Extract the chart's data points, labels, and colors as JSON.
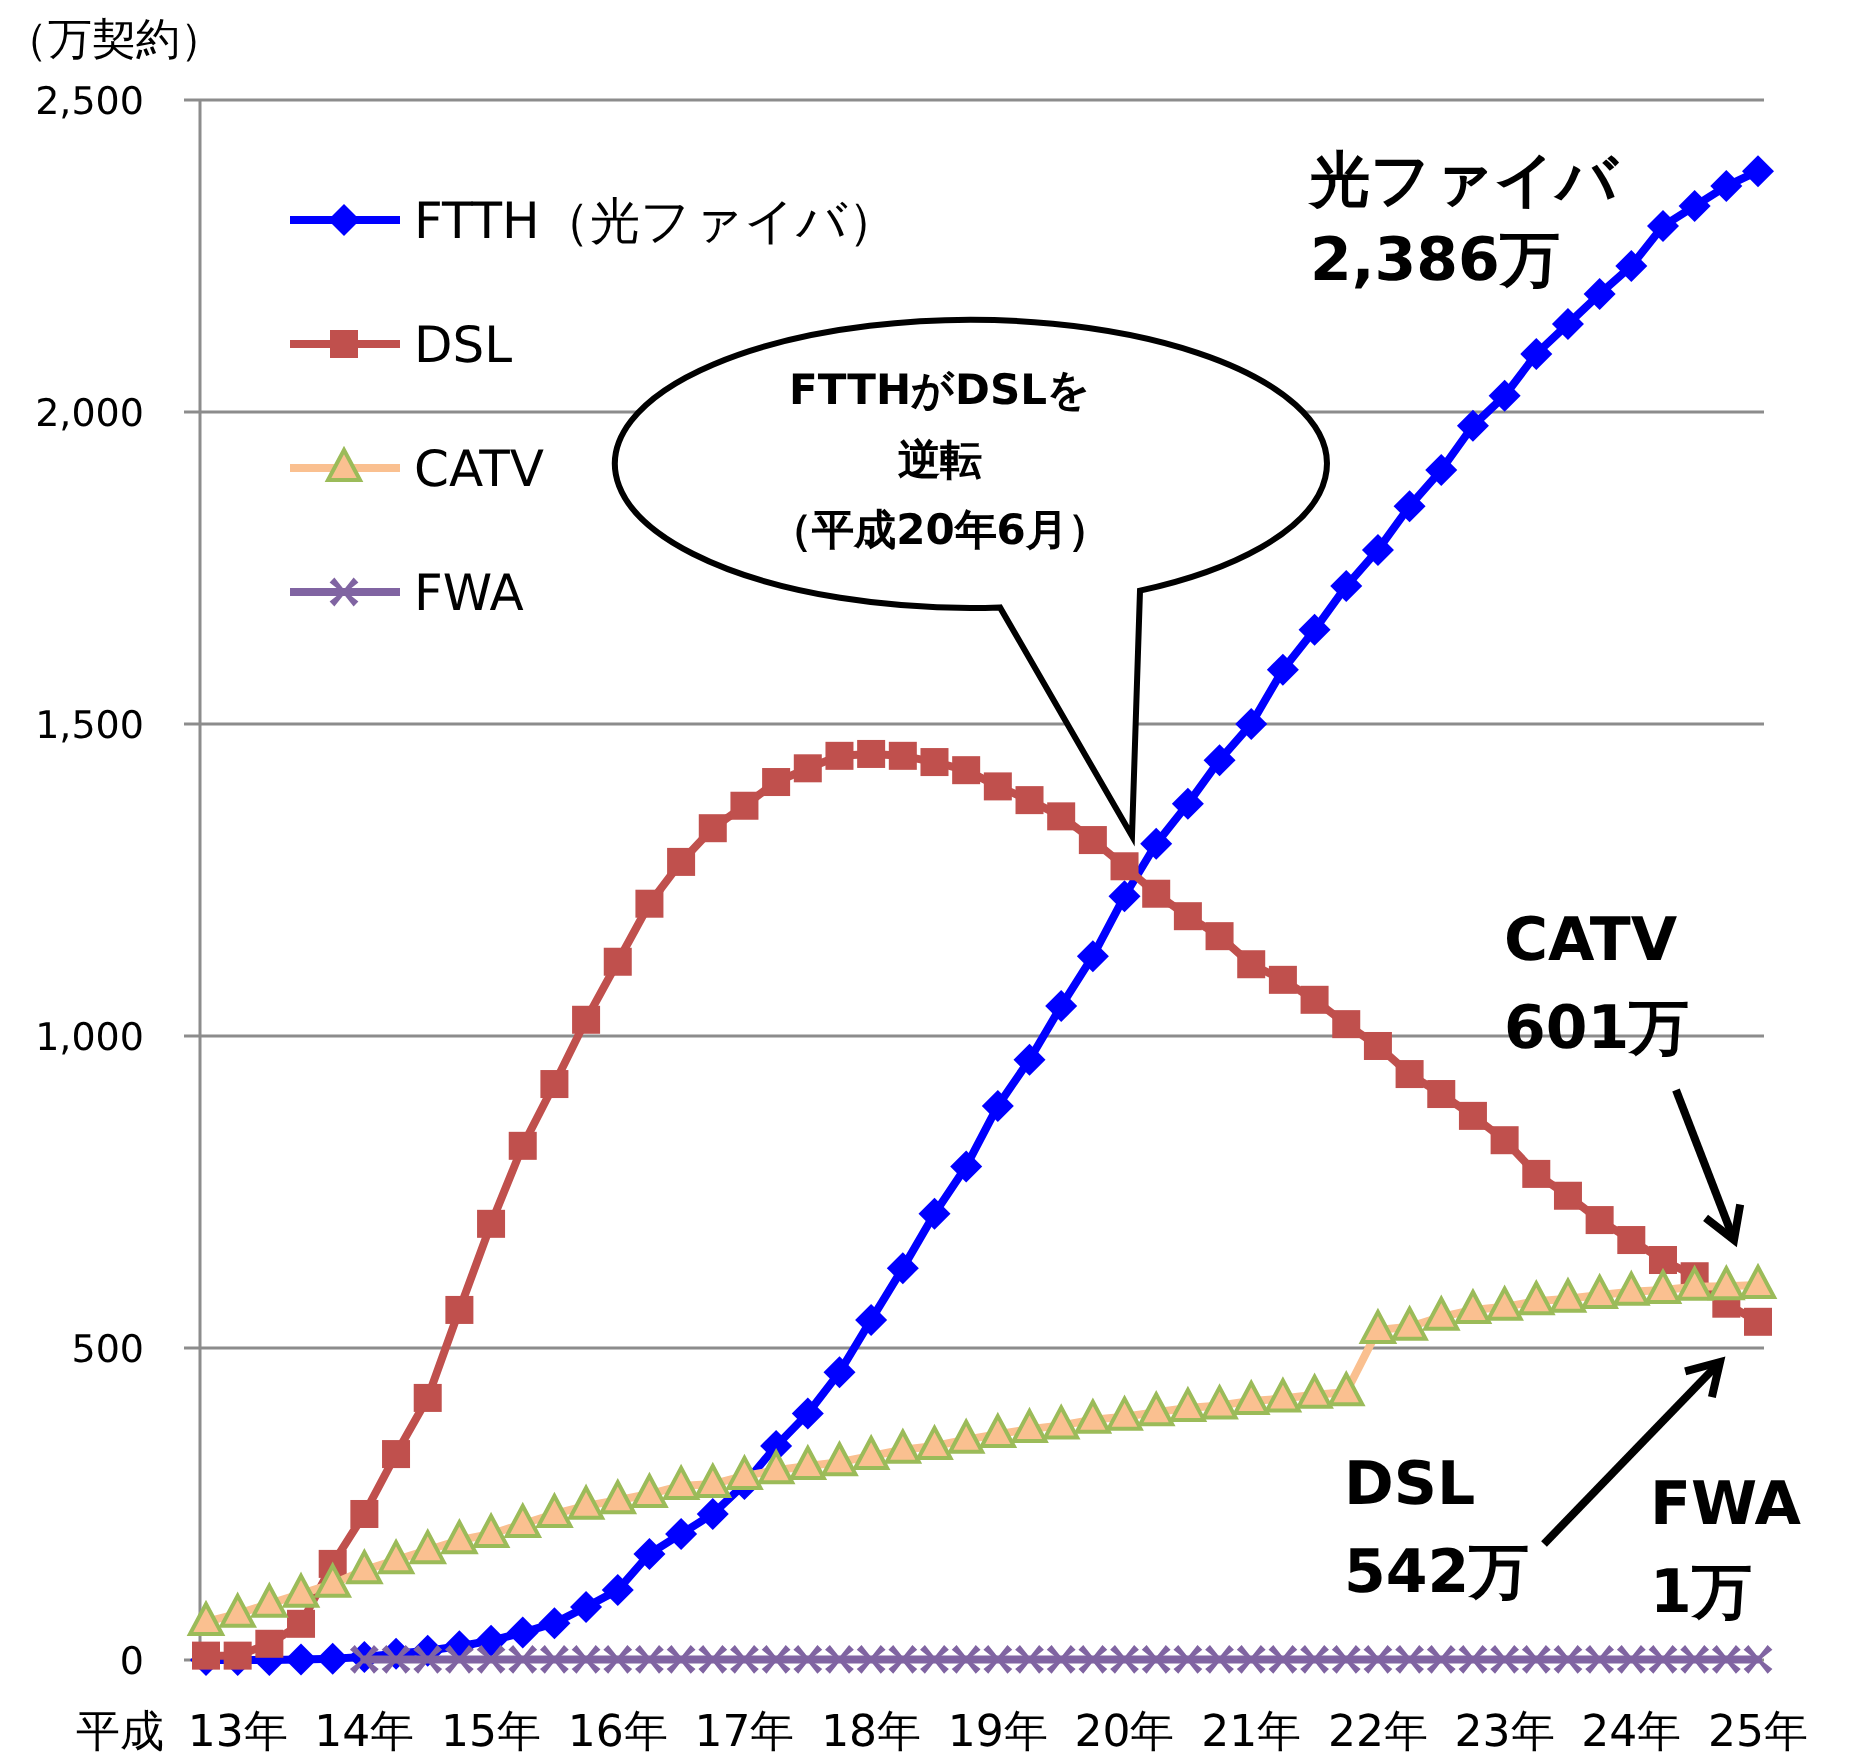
{
  "chart_data": {
    "type": "line",
    "ylabel": "（万契約）",
    "xlabel": "平成",
    "categories": [
      null,
      "13年",
      null,
      null,
      null,
      "14年",
      null,
      null,
      null,
      "15年",
      null,
      null,
      null,
      "16年",
      null,
      null,
      null,
      "17年",
      null,
      null,
      null,
      "18年",
      null,
      null,
      null,
      "19年",
      null,
      null,
      null,
      "20年",
      null,
      null,
      null,
      "21年",
      null,
      null,
      null,
      "22年",
      null,
      null,
      null,
      "23年",
      null,
      null,
      null,
      "24年",
      null,
      null,
      null,
      "25年"
    ],
    "series": [
      {
        "name": "FTTH（光ファイバ）",
        "color": "#0000ff",
        "marker": "diamond",
        "values": [
          0,
          0,
          0,
          1,
          2,
          5,
          10,
          15,
          22,
          31,
          44,
          59,
          85,
          112,
          170,
          202,
          234,
          282,
          343,
          395,
          461,
          545,
          628,
          715,
          791,
          888,
          962,
          1048,
          1128,
          1224,
          1308,
          1372,
          1442,
          1500,
          1587,
          1651,
          1721,
          1779,
          1849,
          1907,
          1978,
          2026,
          2093,
          2141,
          2189,
          2234,
          2298,
          2330,
          2362,
          2386
        ]
      },
      {
        "name": "DSL",
        "color": "#c0504d",
        "marker": "square",
        "values": [
          7,
          7,
          26,
          58,
          154,
          234,
          330,
          420,
          561,
          699,
          824,
          923,
          1026,
          1119,
          1212,
          1279,
          1333,
          1369,
          1407,
          1429,
          1449,
          1452,
          1449,
          1439,
          1426,
          1400,
          1378,
          1352,
          1314,
          1272,
          1228,
          1192,
          1160,
          1115,
          1090,
          1058,
          1019,
          984,
          939,
          907,
          872,
          833,
          779,
          744,
          705,
          673,
          641,
          615,
          571,
          542
        ]
      },
      {
        "name": "CATV",
        "color": "#fac090",
        "marker": "triangle",
        "values": [
          61,
          74,
          90,
          106,
          122,
          144,
          160,
          176,
          192,
          202,
          218,
          234,
          247,
          256,
          266,
          279,
          282,
          295,
          304,
          311,
          317,
          327,
          337,
          343,
          353,
          362,
          370,
          376,
          385,
          390,
          397,
          404,
          408,
          415,
          419,
          425,
          429,
          529,
          534,
          550,
          561,
          566,
          575,
          579,
          585,
          590,
          593,
          598,
          599,
          601
        ]
      },
      {
        "name": "FWA",
        "color": "#8064a2",
        "marker": "cross",
        "values": [
          null,
          null,
          null,
          null,
          null,
          1,
          1,
          1,
          1,
          1,
          1,
          1,
          1,
          1,
          1,
          1,
          1,
          1,
          1,
          1,
          1,
          1,
          1,
          1,
          1,
          1,
          1,
          1,
          1,
          1,
          1,
          1,
          1,
          1,
          1,
          1,
          1,
          1,
          1,
          1,
          1,
          1,
          1,
          1,
          1,
          1,
          1,
          1,
          1,
          1
        ]
      }
    ],
    "ylim": [
      0,
      2500
    ],
    "yticks": [
      0,
      {
        "value": 500,
        "label": "500"
      },
      {
        "value": 1000,
        "label": "1,000"
      },
      {
        "value": 1500,
        "label": "1,500"
      },
      {
        "value": 2000,
        "label": "2,000"
      },
      {
        "value": 2500,
        "label": "2,500"
      }
    ],
    "grid": "y",
    "legend": "top left",
    "line_style": "solid",
    "annotations": [
      "FTTHがDSLを逆転（平成20年6月）",
      "光ファイバ\n2,386万",
      "CATV\n601万",
      "DSL\n542万",
      "FWA\n1万"
    ]
  }
}
